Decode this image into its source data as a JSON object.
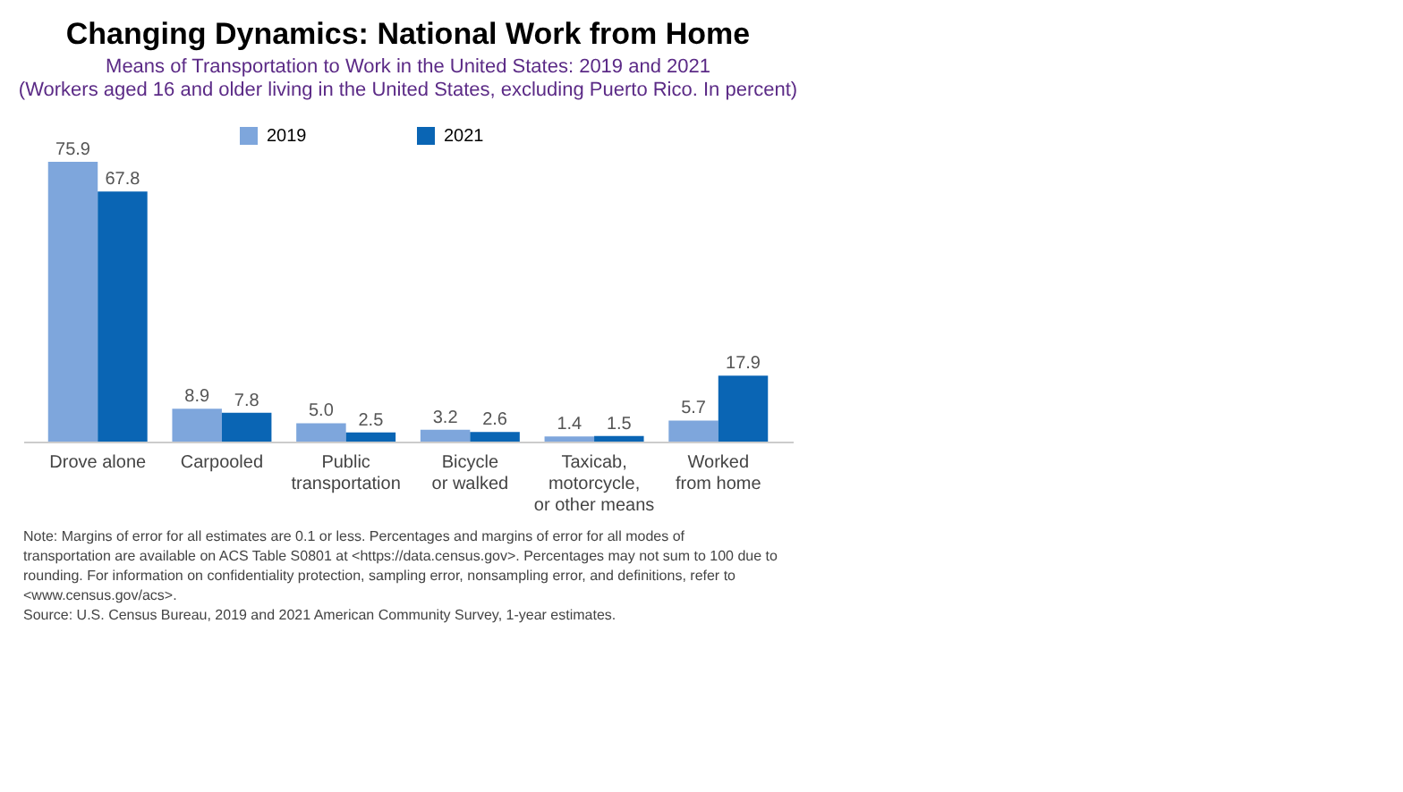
{
  "chart_data": {
    "type": "bar",
    "title": "Changing Dynamics: National Work from Home",
    "subtitle": "Means of Transportation to Work in the United States: 2019 and 2021",
    "categories": [
      "Drove alone",
      "Carpooled",
      "Public\ntransportation",
      "Bicycle\nor walked",
      "Taxicab,\nmotorcycle,\nor other means",
      "Worked\nfrom home"
    ],
    "series": [
      {
        "name": "2019",
        "color": "#7ea6dc",
        "values": [
          75.9,
          8.9,
          5.0,
          3.2,
          1.4,
          5.7
        ],
        "value_labels": [
          "75.9",
          "8.9",
          "5.0",
          "3.2",
          "1.4",
          "5.7"
        ]
      },
      {
        "name": "2021",
        "color": "#0a65b4",
        "values": [
          67.8,
          7.8,
          2.5,
          2.6,
          1.5,
          17.9
        ],
        "value_labels": [
          "67.8",
          "7.8",
          "2.5",
          "2.6",
          "1.5",
          "17.9"
        ]
      }
    ],
    "legend": "top",
    "annotations": [
      "(Workers aged 16 and older living in the United States, excluding Puerto Rico. In percent)",
      "Note: Margins of error for all estimates are 0.1 or less. Percentages and margins of error for all modes of transportation are available on ACS Table S0801 at <https://data.census.gov>. Percentages may not sum to 100 due to rounding. For information on confidentiality protection, sampling error, nonsampling error, and definitions, refer to <www.census.gov/acs>.",
      "Source: U.S. Census Bureau, 2019 and 2021 American Community Survey, 1-year estimates."
    ]
  }
}
